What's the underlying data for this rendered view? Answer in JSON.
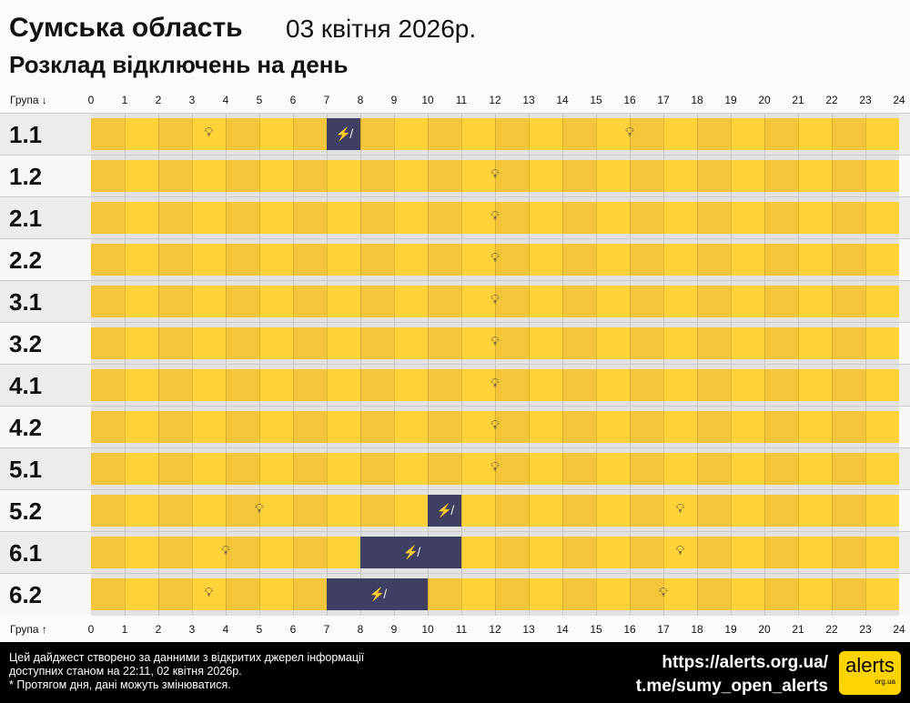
{
  "header": {
    "region": "Сумська область",
    "date": "03 квітня 2026р.",
    "subtitle": "Розклад відключень на день"
  },
  "axis": {
    "top_label": "Група ↓",
    "bottom_label": "Група ↑",
    "hours": [
      "0",
      "1",
      "2",
      "3",
      "4",
      "5",
      "6",
      "7",
      "8",
      "9",
      "10",
      "11",
      "12",
      "13",
      "14",
      "15",
      "16",
      "17",
      "18",
      "19",
      "20",
      "21",
      "22",
      "23",
      "24"
    ]
  },
  "colors": {
    "on_dark": "#f2c53a",
    "on_light": "#fed33a",
    "off": "#3e3f63"
  },
  "icons": {
    "power_on": "lightbulb-icon",
    "power_off": "no-power-icon"
  },
  "groups": [
    {
      "name": "1.1",
      "off": [
        [
          7,
          8
        ]
      ]
    },
    {
      "name": "1.2",
      "off": []
    },
    {
      "name": "2.1",
      "off": []
    },
    {
      "name": "2.2",
      "off": []
    },
    {
      "name": "3.1",
      "off": []
    },
    {
      "name": "3.2",
      "off": []
    },
    {
      "name": "4.1",
      "off": []
    },
    {
      "name": "4.2",
      "off": []
    },
    {
      "name": "5.1",
      "off": []
    },
    {
      "name": "5.2",
      "off": [
        [
          10,
          11
        ]
      ]
    },
    {
      "name": "6.1",
      "off": [
        [
          8,
          11
        ]
      ]
    },
    {
      "name": "6.2",
      "off": [
        [
          7,
          10
        ]
      ]
    }
  ],
  "footer": {
    "note_lines": [
      "Цей дайджест створено за данними з відкритих джерел інформації",
      "доступних станом на 22:11, 02 квітня 2026р.",
      "* Протягом дня, дані можуть змінюватися."
    ],
    "link1": "https://alerts.org.ua/",
    "link2": "t.me/sumy_open_alerts",
    "logo_text": "alerts",
    "logo_sub": "org.ua"
  }
}
